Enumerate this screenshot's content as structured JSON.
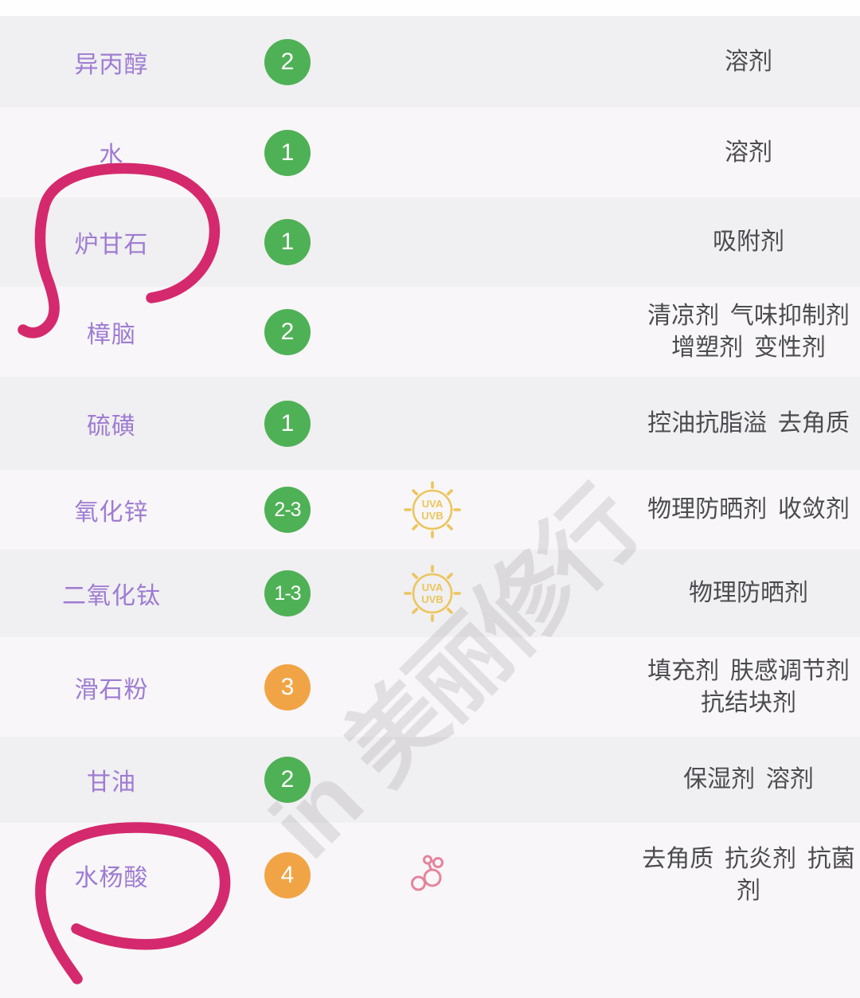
{
  "app": {
    "watermark": "in 美丽修行"
  },
  "table": {
    "rows": [
      {
        "name": "异丙醇",
        "rating": "2",
        "level": "green",
        "icon": null,
        "functions": "溶剂"
      },
      {
        "name": "水",
        "rating": "1",
        "level": "green",
        "icon": null,
        "functions": "溶剂"
      },
      {
        "name": "炉甘石",
        "rating": "1",
        "level": "green",
        "icon": null,
        "functions": "吸附剂",
        "annotated": true
      },
      {
        "name": "樟脑",
        "rating": "2",
        "level": "green",
        "icon": null,
        "functions": "清凉剂 气味抑制剂 增塑剂 变性剂"
      },
      {
        "name": "硫磺",
        "rating": "1",
        "level": "green",
        "icon": null,
        "functions": "控油抗脂溢 去角质"
      },
      {
        "name": "氧化锌",
        "rating": "2-3",
        "level": "green",
        "icon": "uv-sun",
        "functions": "物理防晒剂 收敛剂"
      },
      {
        "name": "二氧化钛",
        "rating": "1-3",
        "level": "green",
        "icon": "uv-sun",
        "functions": "物理防晒剂"
      },
      {
        "name": "滑石粉",
        "rating": "3",
        "level": "orange",
        "icon": null,
        "functions": "填充剂 肤感调节剂 抗结块剂"
      },
      {
        "name": "甘油",
        "rating": "2",
        "level": "green",
        "icon": null,
        "functions": "保湿剂 溶剂"
      },
      {
        "name": "水杨酸",
        "rating": "4",
        "level": "orange",
        "icon": "molecule",
        "functions": "去角质 抗炎剂 抗菌剂",
        "annotated": true
      }
    ]
  },
  "icons": {
    "uva_label": "UVA",
    "uvb_label": "UVB"
  },
  "colors": {
    "rating_green": "#4fb156",
    "rating_orange": "#f1a446",
    "ingredient_text": "#9e7cd2",
    "function_text": "#4c4c50",
    "uv_icon": "#ecc55d",
    "molecule_icon": "#e5849c",
    "marker_pen": "#d5296d",
    "row_alt": "#f0eff1",
    "row_base": "#f8f6f8"
  }
}
